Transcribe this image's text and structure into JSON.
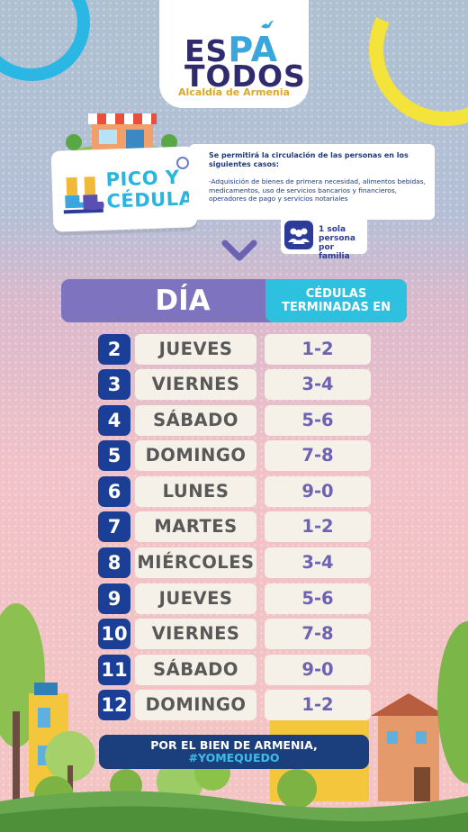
{
  "logo": {
    "line1_a": "ES",
    "line1_b": "PA",
    "line2": "TODOS",
    "subtitle": "Alcaldía de Armenia"
  },
  "pico": {
    "title_line1": "PICO Y",
    "title_line2": "CÉDULA"
  },
  "info": {
    "title": "Se permitirá la circulación de las personas en los siguientes casos:",
    "text": "-Adquisición de bienes de primera necesidad, alimentos bebidas, medicamentos, uso de servicios bancarios y financieros, operadores de pago y servicios notariales"
  },
  "family": {
    "line1": "1 sola persona",
    "line2": "por familia"
  },
  "table": {
    "header_day": "DÍA",
    "header_ced_line1": "CÉDULAS",
    "header_ced_line2": "TERMINADAS EN",
    "rows": [
      {
        "num": "2",
        "day": "JUEVES",
        "ced": "1-2"
      },
      {
        "num": "3",
        "day": "VIERNES",
        "ced": "3-4"
      },
      {
        "num": "4",
        "day": "SÁBADO",
        "ced": "5-6"
      },
      {
        "num": "5",
        "day": "DOMINGO",
        "ced": "7-8"
      },
      {
        "num": "6",
        "day": "LUNES",
        "ced": "9-0"
      },
      {
        "num": "7",
        "day": "MARTES",
        "ced": "1-2"
      },
      {
        "num": "8",
        "day": "MIÉRCOLES",
        "ced": "3-4"
      },
      {
        "num": "9",
        "day": "JUEVES",
        "ced": "5-6"
      },
      {
        "num": "10",
        "day": "VIERNES",
        "ced": "7-8"
      },
      {
        "num": "11",
        "day": "SÁBADO",
        "ced": "9-0"
      },
      {
        "num": "12",
        "day": "DOMINGO",
        "ced": "1-2"
      }
    ]
  },
  "footer": {
    "line1": "POR EL BIEN DE ARMENIA,",
    "line2": "#YOMEQUEDO"
  },
  "colors": {
    "navy": "#1b3f96",
    "purple": "#7d73bf",
    "cyan": "#2dc1df",
    "cream": "#f6f1e8",
    "yellow": "#f3e33a"
  }
}
